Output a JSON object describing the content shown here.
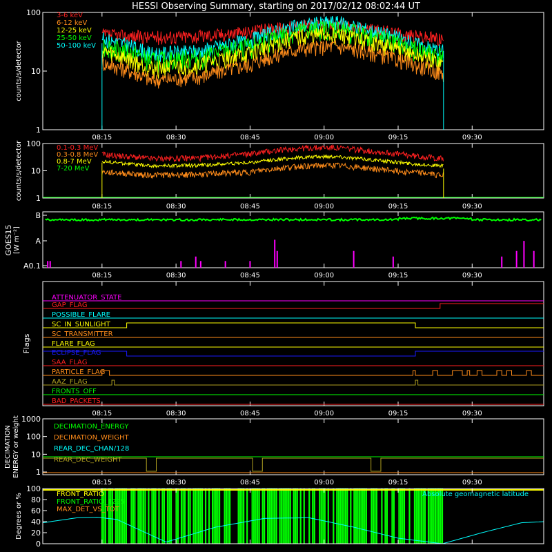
{
  "title": "HESSI Observing Summary, starting on 2017/02/12 08:02:44 UT",
  "colors": {
    "red": "#ff2020",
    "orange": "#ff8c1a",
    "yellow": "#ffff00",
    "green": "#00ff00",
    "cyan": "#00ffff",
    "magenta": "#ff00ff",
    "blue": "#1a1aff",
    "olive": "#b0a020",
    "white": "#ffffff"
  },
  "time_axis": {
    "start": "08:03",
    "end": "09:45",
    "ticks": [
      "08:15",
      "08:30",
      "08:45",
      "09:00",
      "09:15",
      "09:30"
    ],
    "tick_minutes": [
      15,
      30,
      45,
      60,
      75,
      90
    ],
    "range_minutes": [
      3,
      104.5
    ]
  },
  "chart_data": [
    {
      "id": "low-energy",
      "type": "line",
      "ylabel": "counts/s/detector",
      "scale": "log",
      "ylim": [
        1,
        100
      ],
      "yticks": [
        "1",
        "10",
        "100"
      ],
      "ytick_values": [
        1,
        10,
        100
      ],
      "data_span": [
        "08:15",
        "09:23"
      ],
      "series": [
        {
          "name": "3-6 keV",
          "color": "red",
          "points": [
            [
              15,
              42
            ],
            [
              25,
              38
            ],
            [
              35,
              40
            ],
            [
              45,
              47
            ],
            [
              55,
              60
            ],
            [
              62,
              62
            ],
            [
              70,
              50
            ],
            [
              78,
              40
            ],
            [
              84,
              36
            ]
          ]
        },
        {
          "name": "6-12 keV",
          "color": "orange",
          "points": [
            [
              15,
              14
            ],
            [
              25,
              7
            ],
            [
              35,
              8
            ],
            [
              45,
              13
            ],
            [
              55,
              24
            ],
            [
              62,
              27
            ],
            [
              70,
              20
            ],
            [
              78,
              13
            ],
            [
              84,
              9
            ]
          ]
        },
        {
          "name": "12-25 keV",
          "color": "yellow",
          "points": [
            [
              15,
              22
            ],
            [
              25,
              11
            ],
            [
              35,
              13
            ],
            [
              45,
              20
            ],
            [
              55,
              38
            ],
            [
              62,
              43
            ],
            [
              70,
              30
            ],
            [
              78,
              19
            ],
            [
              84,
              13
            ]
          ]
        },
        {
          "name": "25-50 keV",
          "color": "green",
          "points": [
            [
              15,
              28
            ],
            [
              25,
              15
            ],
            [
              35,
              17
            ],
            [
              45,
              26
            ],
            [
              55,
              48
            ],
            [
              62,
              55
            ],
            [
              70,
              38
            ],
            [
              78,
              24
            ],
            [
              84,
              18
            ]
          ]
        },
        {
          "name": "50-100 keV",
          "color": "cyan",
          "points": [
            [
              15,
              36
            ],
            [
              25,
              20
            ],
            [
              35,
              22
            ],
            [
              45,
              34
            ],
            [
              55,
              60
            ],
            [
              62,
              70
            ],
            [
              70,
              48
            ],
            [
              78,
              30
            ],
            [
              84,
              22
            ]
          ]
        }
      ]
    },
    {
      "id": "high-energy",
      "type": "line",
      "ylabel": "counts/s/detector",
      "scale": "log",
      "ylim": [
        1,
        100
      ],
      "yticks": [
        "1",
        "10",
        "100"
      ],
      "ytick_values": [
        1,
        10,
        100
      ],
      "data_span": [
        "08:15",
        "09:23"
      ],
      "series": [
        {
          "name": "0.1-0.3 MeV",
          "color": "red",
          "points": [
            [
              15,
              40
            ],
            [
              25,
              28
            ],
            [
              35,
              30
            ],
            [
              45,
              42
            ],
            [
              55,
              68
            ],
            [
              62,
              72
            ],
            [
              70,
              52
            ],
            [
              78,
              36
            ],
            [
              84,
              28
            ]
          ]
        },
        {
          "name": "0.3-0.8 MeV",
          "color": "orange",
          "points": [
            [
              15,
              9
            ],
            [
              25,
              7
            ],
            [
              35,
              7.5
            ],
            [
              45,
              9
            ],
            [
              55,
              15
            ],
            [
              62,
              16
            ],
            [
              70,
              12
            ],
            [
              78,
              9
            ],
            [
              84,
              7
            ]
          ]
        },
        {
          "name": "0.8-7 MeV",
          "color": "yellow",
          "points": [
            [
              15,
              22
            ],
            [
              25,
              15
            ],
            [
              35,
              16
            ],
            [
              45,
              20
            ],
            [
              55,
              31
            ],
            [
              62,
              34
            ],
            [
              70,
              25
            ],
            [
              78,
              18
            ],
            [
              84,
              15
            ]
          ]
        },
        {
          "name": "7-20 MeV",
          "color": "green",
          "points": [
            [
              15,
              1
            ],
            [
              84,
              1
            ]
          ]
        }
      ]
    },
    {
      "id": "goes",
      "type": "line",
      "ylabel": "GOES15",
      "ylabel2": "[W m⁻²]",
      "scale": "log",
      "yticks": [
        "B",
        "A",
        "A0.1"
      ],
      "series": [
        {
          "name": "GOES",
          "color": "green",
          "level": 0.92
        },
        {
          "name": "markers",
          "color": "magenta",
          "spikes": [
            [
              4,
              0.12
            ],
            [
              4.5,
              0.12
            ],
            [
              31,
              0.12
            ],
            [
              34,
              0.2
            ],
            [
              35,
              0.12
            ],
            [
              40,
              0.12
            ],
            [
              45,
              0.12
            ],
            [
              50,
              0.5
            ],
            [
              50.5,
              0.3
            ],
            [
              66,
              0.3
            ],
            [
              74,
              0.2
            ],
            [
              96,
              0.2
            ],
            [
              99,
              0.3
            ],
            [
              100.5,
              0.48
            ],
            [
              102.5,
              0.3
            ]
          ]
        }
      ]
    },
    {
      "id": "flags",
      "type": "line",
      "ylabel": "Flags",
      "series": [
        {
          "name": "ATTENUATOR_STATE",
          "color": "magenta",
          "changes": []
        },
        {
          "name": "GAP_FLAG",
          "color": "red",
          "changes": [
            [
              83.5,
              1
            ]
          ]
        },
        {
          "name": "POSSIBLE_FLARE",
          "color": "cyan",
          "changes": []
        },
        {
          "name": "SC_IN_SUNLIGHT",
          "color": "yellow",
          "changes": [
            [
              20,
              1
            ],
            [
              78.5,
              0
            ]
          ]
        },
        {
          "name": "SC_TRANSMITTER",
          "color": "orange",
          "changes": []
        },
        {
          "name": "FLARE_FLAG",
          "color": "yellow",
          "changes": []
        },
        {
          "name": "ECLIPSE_FLAG",
          "color": "blue",
          "changes": [
            [
              20,
              0
            ],
            [
              78.5,
              1
            ]
          ],
          "start_high": true
        },
        {
          "name": "SAA_FLAG",
          "color": "red",
          "changes": []
        },
        {
          "name": "PARTICLE_FLAG",
          "color": "orange",
          "pulses": [
            [
              15,
              16.5
            ],
            [
              78,
              78.5
            ],
            [
              82,
              83
            ],
            [
              86,
              88
            ],
            [
              89,
              89.5
            ],
            [
              91,
              92
            ],
            [
              95,
              96
            ],
            [
              97,
              98
            ],
            [
              101,
              102
            ]
          ]
        },
        {
          "name": "AAZ_FLAG",
          "color": "olive",
          "pulses": [
            [
              17,
              17.5
            ],
            [
              78.5,
              79
            ]
          ]
        },
        {
          "name": "FRONTS_OFF",
          "color": "green",
          "changes": []
        },
        {
          "name": "BAD_PACKETS",
          "color": "red",
          "changes": []
        }
      ]
    },
    {
      "id": "decimation",
      "type": "line",
      "ylabel": "DECIMATION",
      "ylabel2": "ENERGY or weight",
      "scale": "log",
      "ylim": [
        0.7,
        1000
      ],
      "yticks": [
        "1",
        "10",
        "100",
        "1000"
      ],
      "ytick_values": [
        1,
        10,
        100,
        1000
      ],
      "series": [
        {
          "name": "DECIMATION_ENERGY",
          "color": "green",
          "value": 0
        },
        {
          "name": "DECIMATION_WEIGHT",
          "color": "orange",
          "value": 0
        },
        {
          "name": "REAR_DEC_CHAN/128",
          "color": "cyan",
          "value": 0
        },
        {
          "name": "REAR_DEC_WEIGHT",
          "color": "olive",
          "value": 6,
          "low_value": 1,
          "low_spans": [
            [
              24,
              26
            ],
            [
              45.5,
              47.5
            ],
            [
              69.5,
              71.5
            ]
          ]
        }
      ]
    },
    {
      "id": "ratio",
      "type": "line",
      "ylabel": "Degrees or %",
      "ylim": [
        0,
        100
      ],
      "yticks": [
        "0",
        "20",
        "40",
        "60",
        "80",
        "100"
      ],
      "ytick_values": [
        0,
        20,
        40,
        60,
        80,
        100
      ],
      "right_label": "Absolute geomagnetic latitude",
      "series": [
        {
          "name": "FRONT_RATIO",
          "color": "yellow"
        },
        {
          "name": "FRONT_RATIO_1225",
          "color": "green",
          "span": [
            15,
            84
          ]
        },
        {
          "name": "MAX_DET_VS_TOT",
          "color": "orange"
        },
        {
          "name": "Absolute geomagnetic latitude",
          "color": "cyan",
          "points": [
            [
              3,
              38
            ],
            [
              10,
              47
            ],
            [
              14,
              48
            ],
            [
              18,
              44
            ],
            [
              28,
              3
            ],
            [
              38,
              30
            ],
            [
              48,
              46
            ],
            [
              57,
              47
            ],
            [
              66,
              30
            ],
            [
              75,
              10
            ],
            [
              84,
              0
            ],
            [
              92,
              20
            ],
            [
              100,
              38
            ],
            [
              104.5,
              40
            ]
          ]
        }
      ]
    }
  ]
}
